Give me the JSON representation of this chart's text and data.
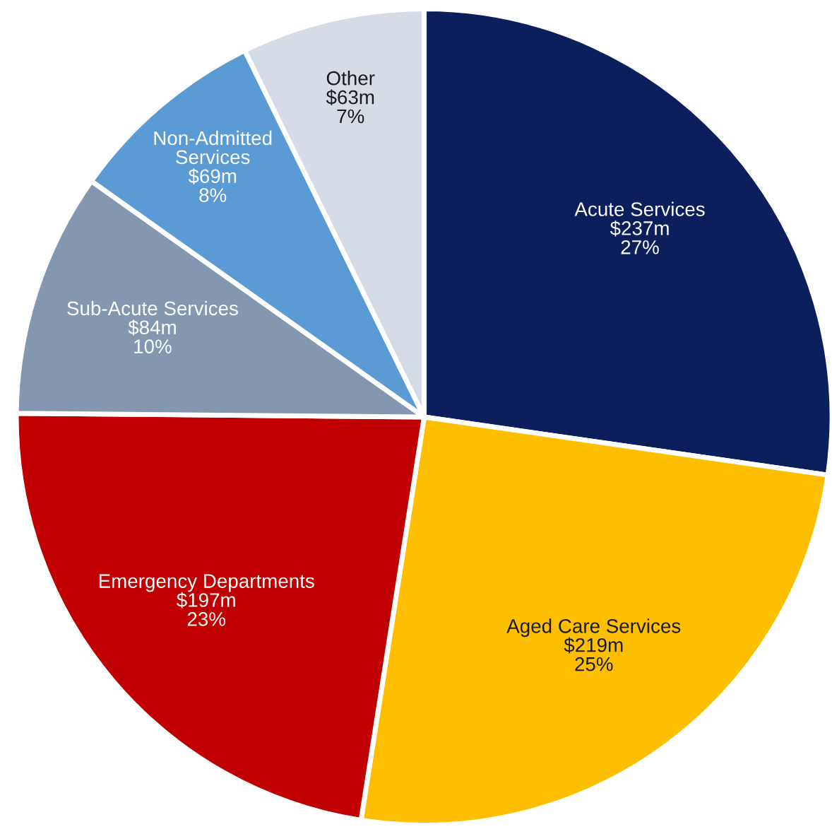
{
  "chart_data": {
    "type": "pie",
    "categories": [
      "Acute Services",
      "Aged Care Services",
      "Emergency Departments",
      "Sub-Acute Services",
      "Non-Admitted\nServices",
      "Other"
    ],
    "values": [
      237,
      219,
      197,
      84,
      69,
      63
    ],
    "value_labels": [
      "$237m",
      "$219m",
      "$197m",
      "$84m",
      "$69m",
      "$63m"
    ],
    "annotations": [
      "27%",
      "25%",
      "23%",
      "10%",
      "8%",
      "7%"
    ],
    "colors": [
      "#0b1f5c",
      "#fdbf00",
      "#c00000",
      "#8497b0",
      "#5b9bd5",
      "#d6dce5"
    ],
    "legend": false
  }
}
